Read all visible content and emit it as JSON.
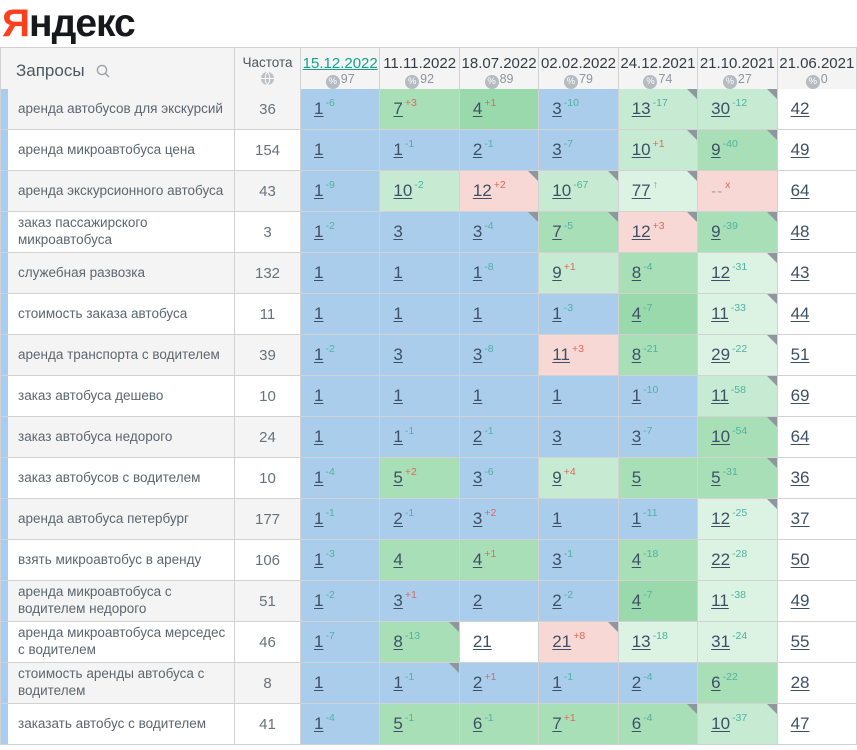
{
  "logo": {
    "accent_letter": "Я",
    "rest": "ндекс"
  },
  "header": {
    "queries_label": "Запросы",
    "frequency_label": "Частота",
    "percent_symbol": "%",
    "dates": [
      {
        "label": "15.12.2022",
        "percent": "97",
        "active": true
      },
      {
        "label": "11.11.2022",
        "percent": "92",
        "active": false
      },
      {
        "label": "18.07.2022",
        "percent": "89",
        "active": false
      },
      {
        "label": "02.02.2022",
        "percent": "79",
        "active": false
      },
      {
        "label": "24.12.2021",
        "percent": "74",
        "active": false
      },
      {
        "label": "21.10.2021",
        "percent": "27",
        "active": false
      },
      {
        "label": "21.06.2021",
        "percent": "0",
        "active": false
      }
    ]
  },
  "colors": {
    "logo_accent": "#fc3f1d",
    "active_date": "#14a38b",
    "change_up": "#4db3a2",
    "change_down": "#e0685c",
    "position_text": "#3d5166",
    "muted_text": "#99a1a9",
    "keyword_strip": "#a9cdf0",
    "cell_colors": {
      "blue": "#aacdeb",
      "green": "#a8dfb7",
      "green_strong": "#99d9ac",
      "green_light": "#c6ebd2",
      "green_pale": "#dcf2e3",
      "pink": "#f8d8d4",
      "white": "#ffffff"
    }
  },
  "rows": [
    {
      "keyword": "аренда автобусов для экскурсий",
      "frequency": "36",
      "cells": [
        {
          "v": "1",
          "s": "-6",
          "t": "up",
          "c": "blue",
          "m": false
        },
        {
          "v": "7",
          "s": "+3",
          "t": "down",
          "c": "green",
          "m": false
        },
        {
          "v": "4",
          "s": "+1",
          "t": "down",
          "c": "green_strong",
          "m": false
        },
        {
          "v": "3",
          "s": "-10",
          "t": "up",
          "c": "blue",
          "m": false
        },
        {
          "v": "13",
          "s": "-17",
          "t": "up",
          "c": "green_light",
          "m": true
        },
        {
          "v": "30",
          "s": "-12",
          "t": "up",
          "c": "green_light",
          "m": true
        },
        {
          "v": "42",
          "s": "",
          "t": "",
          "c": "white",
          "m": false
        }
      ]
    },
    {
      "keyword": "аренда микроавтобуса цена",
      "frequency": "154",
      "cells": [
        {
          "v": "1",
          "s": "",
          "t": "",
          "c": "blue",
          "m": false
        },
        {
          "v": "1",
          "s": "-1",
          "t": "up",
          "c": "blue",
          "m": false
        },
        {
          "v": "2",
          "s": "-1",
          "t": "up",
          "c": "blue",
          "m": false
        },
        {
          "v": "3",
          "s": "-7",
          "t": "up",
          "c": "blue",
          "m": false
        },
        {
          "v": "10",
          "s": "+1",
          "t": "down",
          "c": "green_light",
          "m": true
        },
        {
          "v": "9",
          "s": "-40",
          "t": "up",
          "c": "green",
          "m": true
        },
        {
          "v": "49",
          "s": "",
          "t": "",
          "c": "white",
          "m": false
        }
      ]
    },
    {
      "keyword": "аренда экскурсионного автобуса",
      "frequency": "43",
      "cells": [
        {
          "v": "1",
          "s": "-9",
          "t": "up",
          "c": "blue",
          "m": false
        },
        {
          "v": "10",
          "s": "-2",
          "t": "up",
          "c": "green_light",
          "m": false
        },
        {
          "v": "12",
          "s": "+2",
          "t": "down",
          "c": "pink",
          "m": true
        },
        {
          "v": "10",
          "s": "-67",
          "t": "up",
          "c": "green_light",
          "m": true
        },
        {
          "v": "77",
          "s": "↑",
          "t": "up",
          "c": "green_pale",
          "m": true
        },
        {
          "v": "--",
          "s": "x",
          "t": "down",
          "c": "pink",
          "m": false
        },
        {
          "v": "64",
          "s": "",
          "t": "",
          "c": "white",
          "m": false
        }
      ]
    },
    {
      "keyword": "заказ пассажирского микроавтобуса",
      "frequency": "3",
      "cells": [
        {
          "v": "1",
          "s": "-2",
          "t": "up",
          "c": "blue",
          "m": false
        },
        {
          "v": "3",
          "s": "",
          "t": "",
          "c": "blue",
          "m": false
        },
        {
          "v": "3",
          "s": "-4",
          "t": "up",
          "c": "blue",
          "m": true
        },
        {
          "v": "7",
          "s": "-5",
          "t": "up",
          "c": "green",
          "m": true
        },
        {
          "v": "12",
          "s": "+3",
          "t": "down",
          "c": "pink",
          "m": true
        },
        {
          "v": "9",
          "s": "-39",
          "t": "up",
          "c": "green",
          "m": true
        },
        {
          "v": "48",
          "s": "",
          "t": "",
          "c": "white",
          "m": false
        }
      ]
    },
    {
      "keyword": "служебная развозка",
      "frequency": "132",
      "cells": [
        {
          "v": "1",
          "s": "",
          "t": "",
          "c": "blue",
          "m": false
        },
        {
          "v": "1",
          "s": "",
          "t": "",
          "c": "blue",
          "m": false
        },
        {
          "v": "1",
          "s": "-8",
          "t": "up",
          "c": "blue",
          "m": false
        },
        {
          "v": "9",
          "s": "+1",
          "t": "down",
          "c": "green_light",
          "m": false
        },
        {
          "v": "8",
          "s": "-4",
          "t": "up",
          "c": "green",
          "m": false
        },
        {
          "v": "12",
          "s": "-31",
          "t": "up",
          "c": "green_pale",
          "m": true
        },
        {
          "v": "43",
          "s": "",
          "t": "",
          "c": "white",
          "m": false
        }
      ]
    },
    {
      "keyword": "стоимость заказа автобуса",
      "frequency": "11",
      "cells": [
        {
          "v": "1",
          "s": "",
          "t": "",
          "c": "blue",
          "m": false
        },
        {
          "v": "1",
          "s": "",
          "t": "",
          "c": "blue",
          "m": false
        },
        {
          "v": "1",
          "s": "",
          "t": "",
          "c": "blue",
          "m": false
        },
        {
          "v": "1",
          "s": "-3",
          "t": "up",
          "c": "blue",
          "m": false
        },
        {
          "v": "4",
          "s": "-7",
          "t": "up",
          "c": "green_strong",
          "m": false
        },
        {
          "v": "11",
          "s": "-33",
          "t": "up",
          "c": "green_pale",
          "m": true
        },
        {
          "v": "44",
          "s": "",
          "t": "",
          "c": "white",
          "m": false
        }
      ]
    },
    {
      "keyword": "аренда транспорта с водителем",
      "frequency": "39",
      "cells": [
        {
          "v": "1",
          "s": "-2",
          "t": "up",
          "c": "blue",
          "m": false
        },
        {
          "v": "3",
          "s": "",
          "t": "",
          "c": "blue",
          "m": false
        },
        {
          "v": "3",
          "s": "-8",
          "t": "up",
          "c": "blue",
          "m": false
        },
        {
          "v": "11",
          "s": "+3",
          "t": "down",
          "c": "pink",
          "m": false
        },
        {
          "v": "8",
          "s": "-21",
          "t": "up",
          "c": "green",
          "m": false
        },
        {
          "v": "29",
          "s": "-22",
          "t": "up",
          "c": "green_pale",
          "m": true
        },
        {
          "v": "51",
          "s": "",
          "t": "",
          "c": "white",
          "m": false
        }
      ]
    },
    {
      "keyword": "заказ автобуса дешево",
      "frequency": "10",
      "cells": [
        {
          "v": "1",
          "s": "",
          "t": "",
          "c": "blue",
          "m": false
        },
        {
          "v": "1",
          "s": "",
          "t": "",
          "c": "blue",
          "m": false
        },
        {
          "v": "1",
          "s": "",
          "t": "",
          "c": "blue",
          "m": false
        },
        {
          "v": "1",
          "s": "",
          "t": "",
          "c": "blue",
          "m": false
        },
        {
          "v": "1",
          "s": "-10",
          "t": "up",
          "c": "blue",
          "m": false
        },
        {
          "v": "11",
          "s": "-58",
          "t": "up",
          "c": "green_light",
          "m": true
        },
        {
          "v": "69",
          "s": "",
          "t": "",
          "c": "white",
          "m": false
        }
      ]
    },
    {
      "keyword": "заказ автобуса недорого",
      "frequency": "24",
      "cells": [
        {
          "v": "1",
          "s": "",
          "t": "",
          "c": "blue",
          "m": false
        },
        {
          "v": "1",
          "s": "-1",
          "t": "up",
          "c": "blue",
          "m": false
        },
        {
          "v": "2",
          "s": "-1",
          "t": "up",
          "c": "blue",
          "m": false
        },
        {
          "v": "3",
          "s": "",
          "t": "",
          "c": "blue",
          "m": false
        },
        {
          "v": "3",
          "s": "-7",
          "t": "up",
          "c": "blue",
          "m": false
        },
        {
          "v": "10",
          "s": "-54",
          "t": "up",
          "c": "green",
          "m": true
        },
        {
          "v": "64",
          "s": "",
          "t": "",
          "c": "white",
          "m": false
        }
      ]
    },
    {
      "keyword": "заказ автобусов с водителем",
      "frequency": "10",
      "cells": [
        {
          "v": "1",
          "s": "-4",
          "t": "up",
          "c": "blue",
          "m": false
        },
        {
          "v": "5",
          "s": "+2",
          "t": "down",
          "c": "green",
          "m": false
        },
        {
          "v": "3",
          "s": "-6",
          "t": "up",
          "c": "blue",
          "m": false
        },
        {
          "v": "9",
          "s": "+4",
          "t": "down",
          "c": "green_light",
          "m": false
        },
        {
          "v": "5",
          "s": "",
          "t": "",
          "c": "green",
          "m": false
        },
        {
          "v": "5",
          "s": "-31",
          "t": "up",
          "c": "green",
          "m": true
        },
        {
          "v": "36",
          "s": "",
          "t": "",
          "c": "white",
          "m": false
        }
      ]
    },
    {
      "keyword": "аренда автобуса петербург",
      "frequency": "177",
      "cells": [
        {
          "v": "1",
          "s": "-1",
          "t": "up",
          "c": "blue",
          "m": false
        },
        {
          "v": "2",
          "s": "-1",
          "t": "up",
          "c": "blue",
          "m": false
        },
        {
          "v": "3",
          "s": "+2",
          "t": "down",
          "c": "blue",
          "m": false
        },
        {
          "v": "1",
          "s": "",
          "t": "",
          "c": "blue",
          "m": false
        },
        {
          "v": "1",
          "s": "-11",
          "t": "up",
          "c": "blue",
          "m": false
        },
        {
          "v": "12",
          "s": "-25",
          "t": "up",
          "c": "green_pale",
          "m": true
        },
        {
          "v": "37",
          "s": "",
          "t": "",
          "c": "white",
          "m": false
        }
      ]
    },
    {
      "keyword": "взять микроавтобус в аренду",
      "frequency": "106",
      "cells": [
        {
          "v": "1",
          "s": "-3",
          "t": "up",
          "c": "blue",
          "m": false
        },
        {
          "v": "4",
          "s": "",
          "t": "",
          "c": "green",
          "m": false
        },
        {
          "v": "4",
          "s": "+1",
          "t": "down",
          "c": "green",
          "m": false
        },
        {
          "v": "3",
          "s": "-1",
          "t": "up",
          "c": "blue",
          "m": false
        },
        {
          "v": "4",
          "s": "-18",
          "t": "up",
          "c": "green",
          "m": false
        },
        {
          "v": "22",
          "s": "-28",
          "t": "up",
          "c": "green_pale",
          "m": false
        },
        {
          "v": "50",
          "s": "",
          "t": "",
          "c": "white",
          "m": false
        }
      ]
    },
    {
      "keyword": "аренда микроавтобуса с водителем недорого",
      "frequency": "51",
      "cells": [
        {
          "v": "1",
          "s": "-2",
          "t": "up",
          "c": "blue",
          "m": false
        },
        {
          "v": "3",
          "s": "+1",
          "t": "down",
          "c": "blue",
          "m": false
        },
        {
          "v": "2",
          "s": "",
          "t": "",
          "c": "blue",
          "m": false
        },
        {
          "v": "2",
          "s": "-2",
          "t": "up",
          "c": "blue",
          "m": false
        },
        {
          "v": "4",
          "s": "-7",
          "t": "up",
          "c": "green_strong",
          "m": false
        },
        {
          "v": "11",
          "s": "-38",
          "t": "up",
          "c": "green_pale",
          "m": false
        },
        {
          "v": "49",
          "s": "",
          "t": "",
          "c": "white",
          "m": false
        }
      ]
    },
    {
      "keyword": "аренда микроавтобуса мерседес с водителем",
      "frequency": "46",
      "cells": [
        {
          "v": "1",
          "s": "-7",
          "t": "up",
          "c": "blue",
          "m": false
        },
        {
          "v": "8",
          "s": "-13",
          "t": "up",
          "c": "green",
          "m": true
        },
        {
          "v": "21",
          "s": "",
          "t": "",
          "c": "white",
          "m": false
        },
        {
          "v": "21",
          "s": "+8",
          "t": "down",
          "c": "pink",
          "m": true
        },
        {
          "v": "13",
          "s": "-18",
          "t": "up",
          "c": "green_pale",
          "m": false
        },
        {
          "v": "31",
          "s": "-24",
          "t": "up",
          "c": "green_pale",
          "m": false
        },
        {
          "v": "55",
          "s": "",
          "t": "",
          "c": "white",
          "m": false
        }
      ]
    },
    {
      "keyword": "стоимость аренды автобуса с водителем",
      "frequency": "8",
      "cells": [
        {
          "v": "1",
          "s": "",
          "t": "",
          "c": "blue",
          "m": false
        },
        {
          "v": "1",
          "s": "-1",
          "t": "up",
          "c": "blue",
          "m": true
        },
        {
          "v": "2",
          "s": "+1",
          "t": "down",
          "c": "blue",
          "m": false
        },
        {
          "v": "1",
          "s": "-1",
          "t": "up",
          "c": "blue",
          "m": false
        },
        {
          "v": "2",
          "s": "-4",
          "t": "up",
          "c": "blue",
          "m": false
        },
        {
          "v": "6",
          "s": "-22",
          "t": "up",
          "c": "green",
          "m": false
        },
        {
          "v": "28",
          "s": "",
          "t": "",
          "c": "white",
          "m": false
        }
      ]
    },
    {
      "keyword": "заказать автобус с водителем",
      "frequency": "41",
      "cells": [
        {
          "v": "1",
          "s": "-4",
          "t": "up",
          "c": "blue",
          "m": false
        },
        {
          "v": "5",
          "s": "-1",
          "t": "up",
          "c": "green",
          "m": false
        },
        {
          "v": "6",
          "s": "-1",
          "t": "up",
          "c": "green",
          "m": false
        },
        {
          "v": "7",
          "s": "+1",
          "t": "down",
          "c": "green",
          "m": false
        },
        {
          "v": "6",
          "s": "-4",
          "t": "up",
          "c": "green",
          "m": true
        },
        {
          "v": "10",
          "s": "-37",
          "t": "up",
          "c": "green_light",
          "m": true
        },
        {
          "v": "47",
          "s": "",
          "t": "",
          "c": "white",
          "m": false
        }
      ]
    }
  ]
}
